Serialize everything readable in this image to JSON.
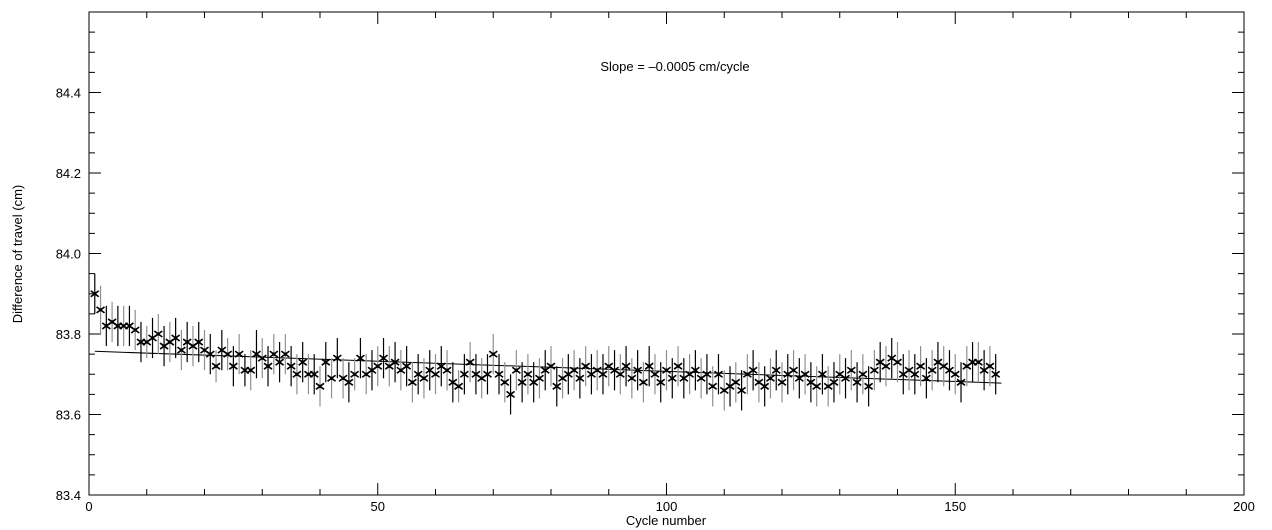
{
  "chart_data": {
    "type": "scatter",
    "xlabel": "Cycle number",
    "ylabel": "Difference of travel   (cm)",
    "annotation": "Slope = –0.0005 cm/cycle",
    "xlim": [
      0,
      200
    ],
    "ylim": [
      83.4,
      84.6
    ],
    "x_ticks": [
      0,
      50,
      100,
      150,
      200
    ],
    "y_ticks": [
      83.4,
      83.6,
      83.8,
      84.0,
      84.2,
      84.4
    ],
    "x_tick_labels": [
      "0",
      "50",
      "100",
      "150",
      "200"
    ],
    "y_tick_labels": [
      "83.4",
      "83.6",
      "83.8",
      "84.0",
      "84.2",
      "84.4"
    ],
    "grid": false,
    "fit_line": {
      "x": [
        1,
        158
      ],
      "y": [
        83.757,
        83.678
      ]
    },
    "series": [
      {
        "x": [
          1,
          2,
          3,
          4,
          5,
          6,
          7,
          8,
          9,
          10,
          11,
          12,
          13,
          14,
          15,
          16,
          17,
          18,
          19,
          20,
          21,
          22,
          23,
          24,
          25,
          26,
          27,
          28,
          29,
          30,
          31,
          32,
          33,
          34,
          35,
          36,
          37,
          38,
          39,
          40,
          41,
          42,
          43,
          44,
          45,
          46,
          47,
          48,
          49,
          50,
          51,
          52,
          53,
          54,
          55,
          56,
          57,
          58,
          59,
          60,
          61,
          62,
          63,
          64,
          65,
          66,
          67,
          68,
          69,
          70,
          71,
          72,
          73,
          74,
          75,
          76,
          77,
          78,
          79,
          80,
          81,
          82,
          83,
          84,
          85,
          86,
          87,
          88,
          89,
          90,
          91,
          92,
          93,
          94,
          95,
          96,
          97,
          98,
          99,
          100,
          101,
          102,
          103,
          104,
          105,
          106,
          107,
          108,
          109,
          110,
          111,
          112,
          113,
          114,
          115,
          116,
          117,
          118,
          119,
          120,
          121,
          122,
          123,
          124,
          125,
          126,
          127,
          128,
          129,
          130,
          131,
          132,
          133,
          134,
          135,
          136,
          137,
          138,
          139,
          140,
          141,
          142,
          143,
          144,
          145,
          146,
          147,
          148,
          149,
          150,
          151,
          152,
          153,
          154,
          155,
          156,
          157
        ],
        "y": [
          83.9,
          83.86,
          83.82,
          83.83,
          83.82,
          83.82,
          83.82,
          83.81,
          83.78,
          83.78,
          83.79,
          83.8,
          83.77,
          83.78,
          83.79,
          83.76,
          83.78,
          83.77,
          83.78,
          83.76,
          83.75,
          83.72,
          83.76,
          83.75,
          83.72,
          83.75,
          83.71,
          83.71,
          83.75,
          83.74,
          83.72,
          83.75,
          83.73,
          83.75,
          83.72,
          83.7,
          83.73,
          83.7,
          83.7,
          83.67,
          83.73,
          83.69,
          83.74,
          83.69,
          83.68,
          83.7,
          83.74,
          83.7,
          83.71,
          83.72,
          83.74,
          83.72,
          83.73,
          83.71,
          83.72,
          83.68,
          83.7,
          83.69,
          83.71,
          83.7,
          83.72,
          83.71,
          83.68,
          83.67,
          83.7,
          83.73,
          83.7,
          83.69,
          83.7,
          83.75,
          83.7,
          83.68,
          83.65,
          83.71,
          83.68,
          83.7,
          83.68,
          83.69,
          83.71,
          83.72,
          83.67,
          83.69,
          83.7,
          83.71,
          83.69,
          83.72,
          83.7,
          83.71,
          83.7,
          83.72,
          83.71,
          83.7,
          83.72,
          83.69,
          83.71,
          83.68,
          83.72,
          83.7,
          83.68,
          83.71,
          83.69,
          83.72,
          83.69,
          83.7,
          83.71,
          83.69,
          83.7,
          83.67,
          83.7,
          83.66,
          83.67,
          83.68,
          83.66,
          83.7,
          83.71,
          83.68,
          83.67,
          83.69,
          83.71,
          83.68,
          83.7,
          83.71,
          83.69,
          83.7,
          83.68,
          83.67,
          83.7,
          83.67,
          83.68,
          83.7,
          83.69,
          83.71,
          83.68,
          83.7,
          83.67,
          83.71,
          83.73,
          83.72,
          83.74,
          83.73,
          83.7,
          83.71,
          83.7,
          83.72,
          83.69,
          83.71,
          83.73,
          83.72,
          83.71,
          83.7,
          83.68,
          83.72,
          83.73,
          83.73,
          83.71,
          83.72,
          83.7
        ],
        "error": [
          0.05,
          0.06,
          0.05,
          0.05,
          0.05,
          0.05,
          0.05,
          0.05,
          0.05,
          0.04,
          0.05,
          0.05,
          0.05,
          0.05,
          0.05,
          0.05,
          0.05,
          0.05,
          0.05,
          0.05,
          0.05,
          0.04,
          0.05,
          0.04,
          0.05,
          0.05,
          0.04,
          0.05,
          0.06,
          0.05,
          0.05,
          0.05,
          0.05,
          0.05,
          0.05,
          0.05,
          0.05,
          0.05,
          0.05,
          0.05,
          0.05,
          0.05,
          0.05,
          0.05,
          0.05,
          0.04,
          0.05,
          0.05,
          0.05,
          0.05,
          0.05,
          0.05,
          0.05,
          0.05,
          0.05,
          0.05,
          0.05,
          0.05,
          0.05,
          0.05,
          0.05,
          0.05,
          0.05,
          0.04,
          0.05,
          0.05,
          0.05,
          0.05,
          0.05,
          0.05,
          0.05,
          0.05,
          0.05,
          0.05,
          0.05,
          0.05,
          0.05,
          0.05,
          0.05,
          0.05,
          0.05,
          0.05,
          0.05,
          0.05,
          0.05,
          0.05,
          0.05,
          0.05,
          0.05,
          0.05,
          0.05,
          0.05,
          0.05,
          0.05,
          0.05,
          0.05,
          0.05,
          0.05,
          0.05,
          0.05,
          0.05,
          0.05,
          0.05,
          0.05,
          0.05,
          0.05,
          0.05,
          0.05,
          0.05,
          0.05,
          0.05,
          0.05,
          0.05,
          0.05,
          0.05,
          0.05,
          0.05,
          0.05,
          0.05,
          0.05,
          0.05,
          0.05,
          0.05,
          0.05,
          0.05,
          0.05,
          0.05,
          0.05,
          0.05,
          0.05,
          0.05,
          0.05,
          0.05,
          0.05,
          0.05,
          0.05,
          0.05,
          0.05,
          0.05,
          0.05,
          0.05,
          0.05,
          0.05,
          0.05,
          0.05,
          0.05,
          0.05,
          0.05,
          0.05,
          0.05,
          0.05,
          0.05,
          0.05,
          0.05,
          0.05,
          0.05,
          0.05
        ],
        "color": "#000000",
        "error_color": "#909090"
      }
    ]
  }
}
